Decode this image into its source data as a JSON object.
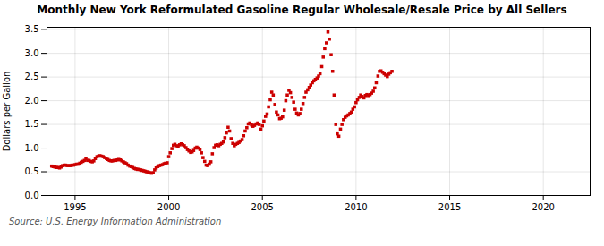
{
  "chart_data": {
    "type": "scatter",
    "title": "Monthly New York Reformulated Gasoline Regular Wholesale/Resale Price by All Sellers",
    "ylabel": "Dollars per Gallon",
    "source": "Source: U.S. Energy Information Administration",
    "xlim": [
      1993.5,
      2022.5
    ],
    "ylim": [
      0.0,
      3.55
    ],
    "xticks": [
      1995,
      2000,
      2005,
      2010,
      2015,
      2020
    ],
    "yticks": [
      {
        "value": 0.0,
        "label": "0.0"
      },
      0.5,
      {
        "value": 1.0,
        "label": "1.0"
      },
      1.5,
      {
        "value": 2.0,
        "label": "2.0"
      },
      2.5,
      {
        "value": 3.0,
        "label": "3.0"
      },
      3.5
    ],
    "color": "#cc0000",
    "marker": "square",
    "grid": true,
    "x": [
      1993.75,
      1993.83,
      1993.92,
      1994.0,
      1994.08,
      1994.17,
      1994.25,
      1994.33,
      1994.42,
      1994.5,
      1994.58,
      1994.67,
      1994.75,
      1994.83,
      1994.92,
      1995.0,
      1995.08,
      1995.17,
      1995.25,
      1995.33,
      1995.42,
      1995.5,
      1995.58,
      1995.67,
      1995.75,
      1995.83,
      1995.92,
      1996.0,
      1996.08,
      1996.17,
      1996.25,
      1996.33,
      1996.42,
      1996.5,
      1996.58,
      1996.67,
      1996.75,
      1996.83,
      1996.92,
      1997.0,
      1997.08,
      1997.17,
      1997.25,
      1997.33,
      1997.42,
      1997.5,
      1997.58,
      1997.67,
      1997.75,
      1997.83,
      1997.92,
      1998.0,
      1998.08,
      1998.17,
      1998.25,
      1998.33,
      1998.42,
      1998.5,
      1998.58,
      1998.67,
      1998.75,
      1998.83,
      1998.92,
      1999.0,
      1999.08,
      1999.17,
      1999.25,
      1999.33,
      1999.42,
      1999.5,
      1999.58,
      1999.67,
      1999.75,
      1999.83,
      1999.92,
      2000.0,
      2000.08,
      2000.17,
      2000.25,
      2000.33,
      2000.42,
      2000.5,
      2000.58,
      2000.67,
      2000.75,
      2000.83,
      2000.92,
      2001.0,
      2001.08,
      2001.17,
      2001.25,
      2001.33,
      2001.42,
      2001.5,
      2001.58,
      2001.67,
      2001.75,
      2001.83,
      2001.92,
      2002.0,
      2002.08,
      2002.17,
      2002.25,
      2002.33,
      2002.42,
      2002.5,
      2002.58,
      2002.67,
      2002.75,
      2002.83,
      2002.92,
      2003.0,
      2003.08,
      2003.17,
      2003.25,
      2003.33,
      2003.42,
      2003.5,
      2003.58,
      2003.67,
      2003.75,
      2003.83,
      2003.92,
      2004.0,
      2004.08,
      2004.17,
      2004.25,
      2004.33,
      2004.42,
      2004.5,
      2004.58,
      2004.67,
      2004.75,
      2004.83,
      2004.92,
      2005.0,
      2005.08,
      2005.17,
      2005.25,
      2005.33,
      2005.42,
      2005.5,
      2005.58,
      2005.67,
      2005.75,
      2005.83,
      2005.92,
      2006.0,
      2006.08,
      2006.17,
      2006.25,
      2006.33,
      2006.42,
      2006.5,
      2006.58,
      2006.67,
      2006.75,
      2006.83,
      2006.92,
      2007.0,
      2007.08,
      2007.17,
      2007.25,
      2007.33,
      2007.42,
      2007.5,
      2007.58,
      2007.67,
      2007.75,
      2007.83,
      2007.92,
      2008.0,
      2008.08,
      2008.17,
      2008.25,
      2008.33,
      2008.42,
      2008.5,
      2008.58,
      2008.67,
      2008.75,
      2008.83,
      2008.92,
      2009.0,
      2009.08,
      2009.17,
      2009.25,
      2009.33,
      2009.42,
      2009.5,
      2009.58,
      2009.67,
      2009.75,
      2009.83,
      2009.92,
      2010.0,
      2010.08,
      2010.17,
      2010.25,
      2010.33,
      2010.42,
      2010.5,
      2010.58,
      2010.67,
      2010.75,
      2010.83,
      2010.92,
      2011.0,
      2011.08,
      2011.17,
      2011.25,
      2011.33,
      2011.42,
      2011.5,
      2011.58,
      2011.67,
      2011.75,
      2011.83,
      2011.92
    ],
    "values": [
      0.62,
      0.61,
      0.6,
      0.59,
      0.59,
      0.58,
      0.6,
      0.63,
      0.64,
      0.64,
      0.63,
      0.63,
      0.63,
      0.64,
      0.64,
      0.65,
      0.66,
      0.66,
      0.68,
      0.7,
      0.72,
      0.74,
      0.77,
      0.74,
      0.74,
      0.72,
      0.71,
      0.73,
      0.78,
      0.82,
      0.83,
      0.84,
      0.83,
      0.82,
      0.8,
      0.78,
      0.76,
      0.74,
      0.73,
      0.73,
      0.74,
      0.74,
      0.75,
      0.76,
      0.75,
      0.73,
      0.71,
      0.69,
      0.67,
      0.64,
      0.62,
      0.61,
      0.59,
      0.57,
      0.56,
      0.55,
      0.55,
      0.54,
      0.53,
      0.52,
      0.51,
      0.5,
      0.49,
      0.48,
      0.47,
      0.48,
      0.54,
      0.58,
      0.61,
      0.63,
      0.64,
      0.65,
      0.67,
      0.68,
      0.69,
      0.82,
      0.9,
      0.99,
      1.06,
      1.08,
      1.05,
      1.03,
      1.07,
      1.09,
      1.07,
      1.05,
      1.01,
      0.97,
      0.94,
      0.91,
      0.92,
      0.95,
      1.0,
      1.02,
      1.0,
      0.97,
      0.9,
      0.8,
      0.72,
      0.64,
      0.63,
      0.66,
      0.71,
      0.88,
      1.01,
      1.06,
      1.07,
      1.05,
      1.08,
      1.1,
      1.13,
      1.22,
      1.32,
      1.44,
      1.36,
      1.2,
      1.1,
      1.05,
      1.08,
      1.1,
      1.12,
      1.15,
      1.18,
      1.26,
      1.36,
      1.43,
      1.51,
      1.53,
      1.49,
      1.46,
      1.48,
      1.51,
      1.53,
      1.5,
      1.4,
      1.47,
      1.57,
      1.67,
      1.72,
      1.87,
      2.02,
      2.18,
      2.12,
      1.92,
      1.76,
      1.7,
      1.62,
      1.63,
      1.66,
      1.8,
      2.0,
      2.12,
      2.22,
      2.17,
      2.07,
      1.97,
      1.82,
      1.74,
      1.7,
      1.73,
      1.82,
      1.94,
      2.07,
      2.18,
      2.23,
      2.28,
      2.33,
      2.38,
      2.42,
      2.45,
      2.48,
      2.52,
      2.57,
      2.72,
      2.92,
      3.1,
      3.22,
      3.45,
      3.3,
      2.97,
      2.62,
      2.12,
      1.5,
      1.3,
      1.25,
      1.4,
      1.5,
      1.6,
      1.65,
      1.68,
      1.7,
      1.73,
      1.76,
      1.82,
      1.87,
      1.96,
      2.02,
      2.07,
      2.12,
      2.09,
      2.06,
      2.11,
      2.13,
      2.11,
      2.13,
      2.16,
      2.2,
      2.27,
      2.38,
      2.52,
      2.62,
      2.63,
      2.6,
      2.57,
      2.54,
      2.51,
      2.56,
      2.59,
      2.62
    ]
  }
}
